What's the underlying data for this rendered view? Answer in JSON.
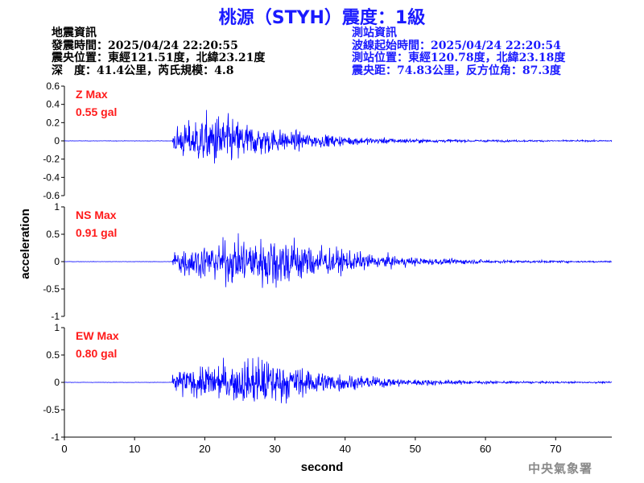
{
  "title": "桃源（STYH）震度：1級",
  "quake_info": {
    "heading": "地震資訊",
    "origin_time": "發震時間：2025/04/24 22:20:55",
    "epicenter": "震央位置：東經121.51度，北緯23.21度",
    "depth_magnitude": "深　度：41.4公里，芮氏規模：4.8"
  },
  "station_info": {
    "heading": "測站資訊",
    "wave_start": "波線起始時間：2025/04/24 22:20:54",
    "location": "測站位置：東經120.78度，北緯23.18度",
    "distance": "震央距：74.83公里，反方位角：87.3度"
  },
  "watermark": "中央氣象署",
  "colors": {
    "title": "#1a1aff",
    "trace": "#0000ff",
    "peak_label": "#ff1a1a",
    "axis": "#000000"
  },
  "chart_data": [
    {
      "type": "line",
      "name": "Z",
      "peak_label": "Z Max",
      "peak_value": "0.55 gal",
      "ylim": [
        -0.6,
        0.6
      ],
      "yticks": [
        -0.6,
        -0.4,
        -0.2,
        0,
        0.2,
        0.4,
        0.6
      ],
      "ytick_labels": [
        "-0.6",
        "-0.4",
        "-0.2",
        "0",
        "0.2",
        "0.4",
        "0.6"
      ],
      "onset_s": 15.4,
      "peak_time_s": 21.5,
      "peak_amplitude": 0.55
    },
    {
      "type": "line",
      "name": "NS",
      "peak_label": "NS Max",
      "peak_value": "0.91 gal",
      "ylim": [
        -1,
        1
      ],
      "yticks": [
        -1,
        -0.5,
        0,
        0.5,
        1
      ],
      "ytick_labels": [
        "-1",
        "-0.5",
        "0",
        "0.5",
        "1"
      ],
      "onset_s": 15.4,
      "peak_time_s": 30.5,
      "peak_amplitude": 0.91
    },
    {
      "type": "line",
      "name": "EW",
      "peak_label": "EW Max",
      "peak_value": "0.80 gal",
      "ylim": [
        -1,
        1
      ],
      "yticks": [
        -1,
        -0.5,
        0,
        0.5,
        1
      ],
      "ytick_labels": [
        "-1",
        "-0.5",
        "0",
        "0.5",
        "1"
      ],
      "onset_s": 15.4,
      "peak_time_s": 28.5,
      "peak_amplitude": 0.8
    }
  ],
  "x_axis": {
    "label": "second",
    "xlim": [
      0,
      78
    ],
    "ticks": [
      0,
      10,
      20,
      30,
      40,
      50,
      60,
      70
    ],
    "tick_labels": [
      "0",
      "10",
      "20",
      "30",
      "40",
      "50",
      "60",
      "70"
    ]
  },
  "y_axis_label": "acceleration"
}
